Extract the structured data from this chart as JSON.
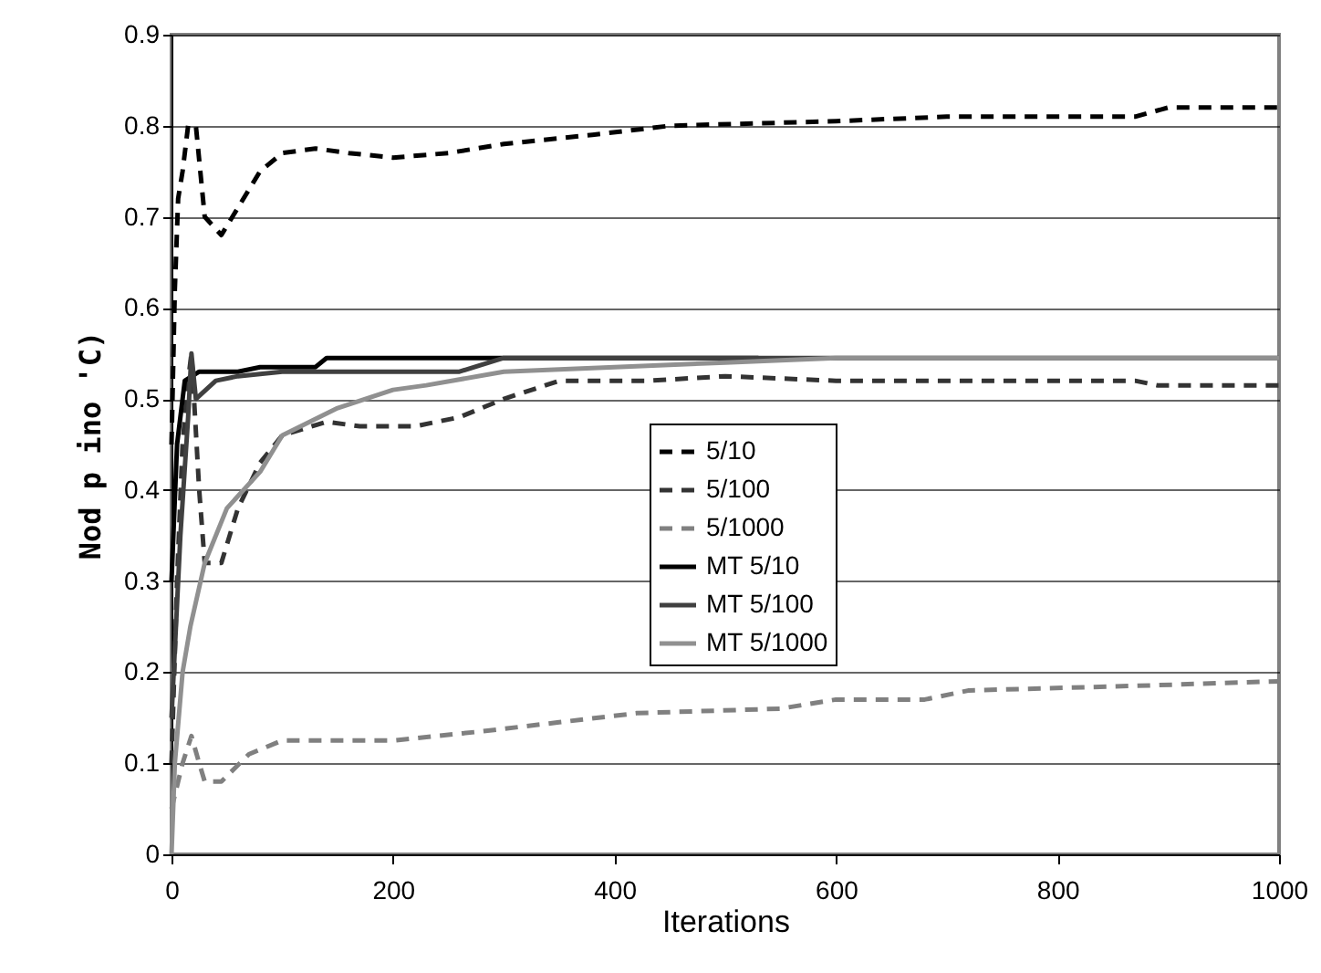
{
  "chart_data": {
    "type": "line",
    "xlabel": "Iterations",
    "ylabel": "Nod p      ino      'C)",
    "xlim": [
      0,
      1000
    ],
    "xticks": [
      0,
      200,
      400,
      600,
      800,
      1000
    ],
    "ylim": [
      0,
      0.9
    ],
    "yticks": [
      0,
      0.1,
      0.2,
      0.3,
      0.4,
      0.5,
      0.6,
      0.7,
      0.8,
      0.9
    ],
    "grid": "y",
    "legend": "center",
    "marker": "none",
    "series": [
      {
        "name": "5/10",
        "color": "#000000",
        "line_style": "dashed",
        "x": [
          0,
          3,
          6,
          10,
          15,
          22,
          30,
          45,
          60,
          80,
          100,
          130,
          160,
          200,
          250,
          300,
          380,
          450,
          600,
          700,
          870,
          900,
          1000
        ],
        "values": [
          0.45,
          0.62,
          0.72,
          0.75,
          0.8,
          0.8,
          0.7,
          0.68,
          0.71,
          0.75,
          0.77,
          0.775,
          0.77,
          0.765,
          0.77,
          0.78,
          0.79,
          0.8,
          0.805,
          0.81,
          0.81,
          0.82,
          0.82
        ]
      },
      {
        "name": "5/100",
        "color": "#333333",
        "line_style": "dashed",
        "x": [
          0,
          5,
          10,
          15,
          18,
          25,
          30,
          45,
          60,
          80,
          100,
          140,
          170,
          220,
          260,
          300,
          350,
          430,
          500,
          600,
          870,
          890,
          1000
        ],
        "values": [
          0.1,
          0.3,
          0.45,
          0.52,
          0.55,
          0.4,
          0.32,
          0.32,
          0.38,
          0.43,
          0.46,
          0.475,
          0.47,
          0.47,
          0.48,
          0.5,
          0.52,
          0.52,
          0.525,
          0.52,
          0.52,
          0.515,
          0.515
        ]
      },
      {
        "name": "5/1000",
        "color": "#808080",
        "line_style": "dashed",
        "x": [
          0,
          10,
          18,
          25,
          30,
          45,
          70,
          100,
          200,
          280,
          350,
          420,
          550,
          600,
          680,
          720,
          870,
          1000
        ],
        "values": [
          0.05,
          0.1,
          0.13,
          0.1,
          0.08,
          0.08,
          0.11,
          0.125,
          0.125,
          0.135,
          0.145,
          0.155,
          0.16,
          0.17,
          0.17,
          0.18,
          0.185,
          0.19
        ]
      },
      {
        "name": "MT 5/10",
        "color": "#000000",
        "line_style": "solid",
        "x": [
          0,
          5,
          12,
          25,
          60,
          80,
          130,
          140,
          530
        ],
        "values": [
          0.3,
          0.45,
          0.52,
          0.53,
          0.53,
          0.535,
          0.535,
          0.545,
          0.545
        ]
      },
      {
        "name": "MT 5/100",
        "color": "#404040",
        "line_style": "solid",
        "x": [
          0,
          8,
          15,
          18,
          22,
          40,
          60,
          100,
          260,
          300,
          1000
        ],
        "values": [
          0.15,
          0.35,
          0.48,
          0.55,
          0.5,
          0.52,
          0.525,
          0.53,
          0.53,
          0.545,
          0.545
        ]
      },
      {
        "name": "MT 5/1000",
        "color": "#909090",
        "line_style": "solid",
        "x": [
          0,
          3,
          10,
          17,
          30,
          50,
          80,
          100,
          150,
          200,
          230,
          300,
          400,
          500,
          600,
          1000
        ],
        "values": [
          0,
          0.1,
          0.2,
          0.25,
          0.32,
          0.38,
          0.42,
          0.46,
          0.49,
          0.51,
          0.515,
          0.53,
          0.535,
          0.54,
          0.545,
          0.545
        ]
      }
    ]
  }
}
